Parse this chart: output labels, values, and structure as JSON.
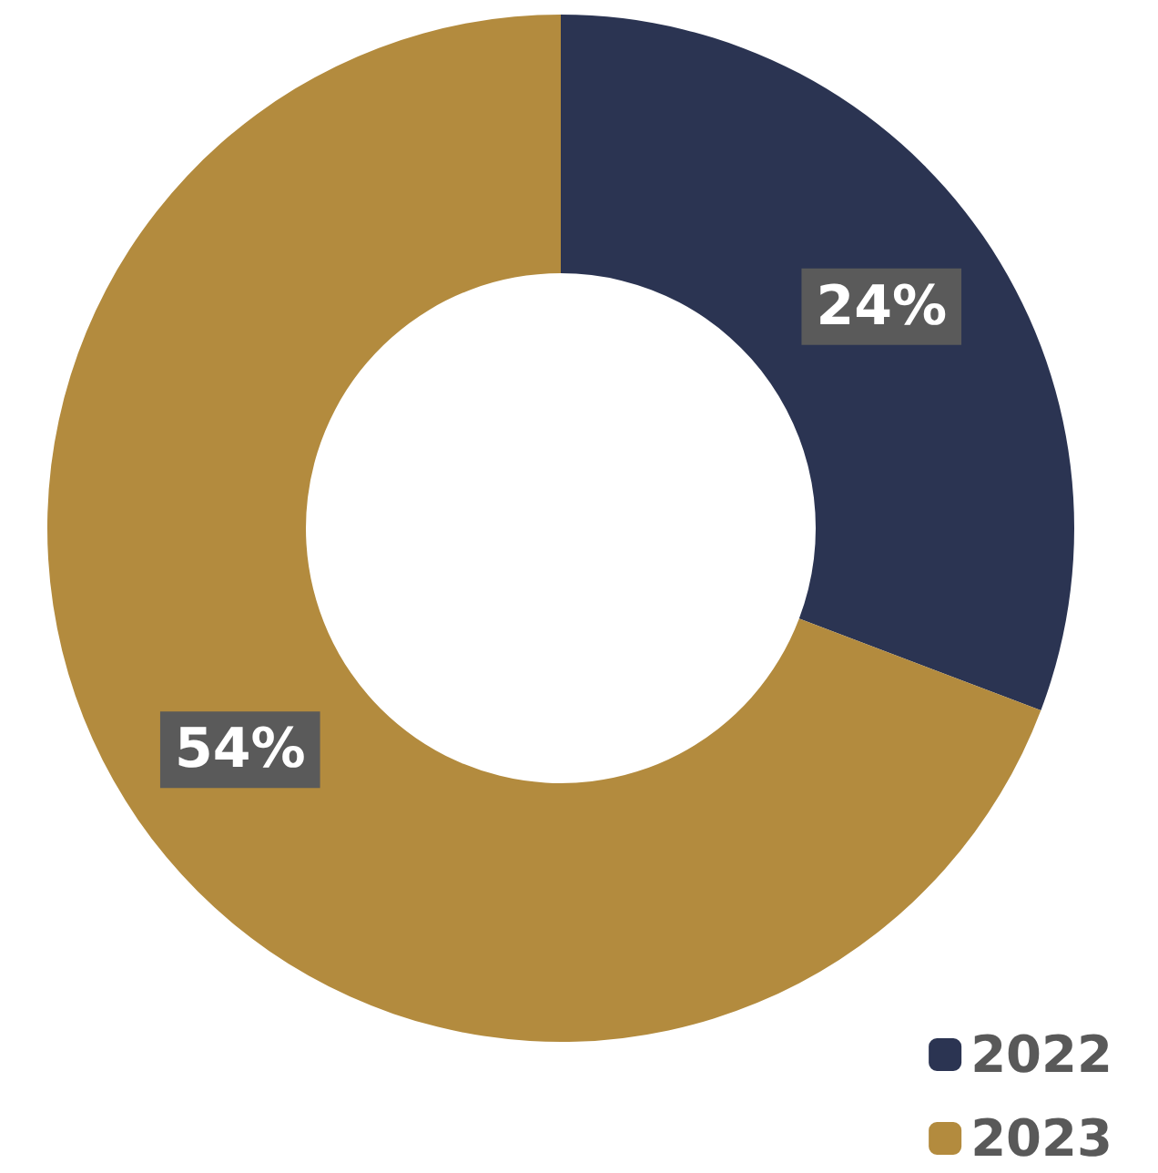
{
  "chart_data": {
    "type": "donut",
    "categories": [
      "2022",
      "2023"
    ],
    "values": [
      24,
      54
    ],
    "value_labels": [
      "24%",
      "54%"
    ],
    "colors": [
      "#2b3452",
      "#b38b3e"
    ],
    "legend": "bottom right"
  }
}
